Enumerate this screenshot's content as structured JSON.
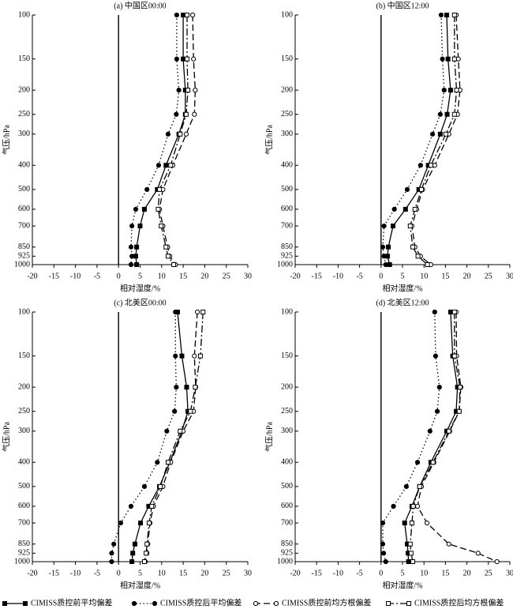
{
  "chart_data": [
    {
      "type": "line",
      "title": "(a) 中国区00:00",
      "xlabel": "相对湿度/%",
      "ylabel": "气压/hPa",
      "y": [
        100,
        150,
        200,
        250,
        300,
        400,
        500,
        600,
        700,
        850,
        925,
        1000
      ],
      "xlim": [
        -20,
        30
      ],
      "xticks": [
        -20,
        -15,
        -10,
        -5,
        0,
        5,
        10,
        15,
        20,
        25,
        30
      ],
      "ylim": [
        100,
        1000
      ],
      "yticks": [
        100,
        150,
        200,
        250,
        300,
        400,
        500,
        600,
        700,
        850,
        925,
        1000
      ],
      "yscale": "log",
      "yinverted": true,
      "series": [
        {
          "name": "CIMISS质控前平均偏差",
          "color": "#000000",
          "values": [
            15,
            15,
            15.5,
            15.5,
            14,
            11,
            9,
            6,
            5,
            4.2,
            4,
            4.2
          ]
        },
        {
          "name": "CIMISS质控后平均偏差",
          "color": "#000000",
          "values": [
            13.5,
            13.5,
            14,
            13.4,
            11.5,
            9.3,
            6.6,
            4,
            3.1,
            2.9,
            3.1,
            2.9
          ]
        },
        {
          "name": "CIMISS质控前均方根偏差",
          "color": "#000000",
          "values": [
            17.2,
            17.4,
            17.8,
            17.6,
            15.7,
            12.6,
            10.3,
            9.5,
            10.3,
            11.4,
            11.9,
            13.2
          ]
        },
        {
          "name": "CIMISS质控后均方根偏差",
          "color": "#000000",
          "values": [
            15.9,
            15.9,
            16.1,
            15.7,
            14.3,
            12.1,
            9.5,
            9.2,
            9.9,
            11,
            11.5,
            12.8
          ]
        }
      ]
    },
    {
      "type": "line",
      "title": "(b) 中国区12:00",
      "xlabel": "相对湿度/%",
      "ylabel": "气压/hPa",
      "y": [
        100,
        150,
        200,
        250,
        300,
        400,
        500,
        600,
        700,
        850,
        925,
        1000
      ],
      "xlim": [
        -20,
        30
      ],
      "xticks": [
        -20,
        -15,
        -10,
        -5,
        0,
        5,
        10,
        15,
        20,
        25,
        30
      ],
      "ylim": [
        100,
        1000
      ],
      "yticks": [
        100,
        150,
        200,
        250,
        300,
        400,
        500,
        600,
        700,
        850,
        925,
        1000
      ],
      "yscale": "log",
      "yinverted": true,
      "series": [
        {
          "color": "#000000",
          "values": [
            15.3,
            15.6,
            16.2,
            15.4,
            13.8,
            11,
            8.8,
            5.7,
            2.8,
            1.7,
            1.5,
            2
          ]
        },
        {
          "color": "#000000",
          "values": [
            14,
            14.3,
            14.7,
            13.8,
            12,
            9.2,
            6.1,
            3.1,
            0.7,
            0.4,
            0.7,
            1.1
          ]
        },
        {
          "color": "#000000",
          "values": [
            17.5,
            18,
            18.4,
            17.8,
            15.8,
            12.5,
            9.7,
            8.3,
            7.2,
            7.9,
            9.2,
            11.6
          ]
        },
        {
          "color": "#000000",
          "values": [
            17.1,
            17.1,
            17.6,
            17.1,
            15.1,
            11.6,
            9.4,
            7.9,
            6.8,
            7.4,
            8.6,
            10.8
          ]
        }
      ]
    },
    {
      "type": "line",
      "title": "(c) 北美区00:00",
      "xlabel": "相对湿度/%",
      "ylabel": "气压/hPa",
      "y": [
        100,
        150,
        200,
        250,
        300,
        400,
        500,
        600,
        700,
        850,
        925,
        1000
      ],
      "xlim": [
        -20,
        30
      ],
      "xticks": [
        -20,
        -15,
        -10,
        -5,
        0,
        5,
        10,
        15,
        20,
        25,
        30
      ],
      "ylim": [
        100,
        1000
      ],
      "yticks": [
        100,
        150,
        200,
        250,
        300,
        400,
        500,
        600,
        700,
        850,
        925,
        1000
      ],
      "yscale": "log",
      "yinverted": true,
      "series": [
        {
          "color": "#000000",
          "values": [
            13.7,
            14.7,
            15.8,
            16.1,
            14.7,
            11.9,
            9.5,
            7,
            5.1,
            3.8,
            3.3,
            3.1
          ]
        },
        {
          "color": "#000000",
          "values": [
            13.2,
            13.2,
            13.4,
            13,
            11.2,
            9,
            6,
            2.9,
            0.5,
            -1.1,
            -1.6,
            -1.6
          ]
        },
        {
          "color": "#000000",
          "values": [
            18.3,
            17.6,
            17.9,
            17.4,
            15,
            12.1,
            10.3,
            8.1,
            7.3,
            6.8,
            6.6,
            6.2
          ]
        },
        {
          "color": "#000000",
          "values": [
            19.6,
            19,
            17.8,
            16.7,
            14.3,
            11.5,
            9.7,
            7.7,
            7.1,
            6.6,
            6.4,
            6
          ]
        }
      ]
    },
    {
      "type": "line",
      "title": "(d) 北美区12:00",
      "xlabel": "相对湿度/%",
      "ylabel": "气压/hPa",
      "y": [
        100,
        150,
        200,
        250,
        300,
        400,
        500,
        600,
        700,
        850,
        925,
        1000
      ],
      "xlim": [
        -20,
        30
      ],
      "xticks": [
        -20,
        -15,
        -10,
        -5,
        0,
        5,
        10,
        15,
        20,
        25,
        30
      ],
      "ylim": [
        100,
        1000
      ],
      "yticks": [
        100,
        150,
        200,
        250,
        300,
        400,
        500,
        600,
        700,
        850,
        925,
        1000
      ],
      "yscale": "log",
      "yinverted": true,
      "series": [
        {
          "color": "#000000",
          "values": [
            16.2,
            16.7,
            17.8,
            17.5,
            15.3,
            11.6,
            9,
            7.2,
            5.5,
            6.1,
            6.3,
            6.4
          ]
        },
        {
          "color": "#000000",
          "values": [
            12.5,
            12.7,
            13.6,
            13.1,
            11.4,
            8.5,
            5.9,
            2.9,
            0.4,
            0.4,
            0.6,
            1.1
          ]
        },
        {
          "color": "#000000",
          "values": [
            17.5,
            17.6,
            18.6,
            18.2,
            16,
            12.3,
            9.4,
            8.5,
            10.7,
            15.8,
            22.6,
            27
          ]
        },
        {
          "color": "#000000",
          "values": [
            17.1,
            17.1,
            18.4,
            18.2,
            15.8,
            12.1,
            9,
            7.5,
            7.2,
            6.8,
            7,
            7.4
          ]
        }
      ]
    }
  ]
}
